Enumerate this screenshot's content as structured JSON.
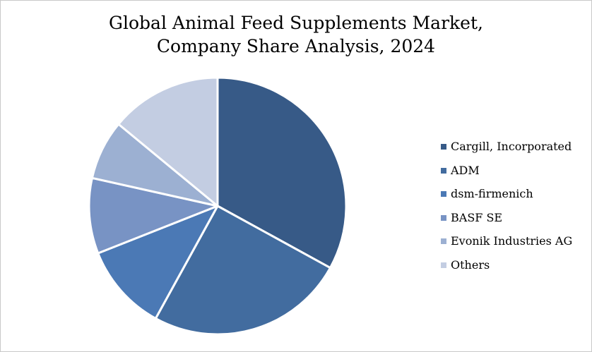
{
  "chart_data": {
    "type": "pie",
    "title": "Global Animal Feed Supplements Market, Company Share Analysis, 2024",
    "title_lines": [
      "Global Animal Feed Supplements Market,",
      "Company Share Analysis, 2024"
    ],
    "categories": [
      "Cargill, Incorporated",
      "ADM",
      "dsm-firmenich",
      "BASF SE",
      "Evonik Industries AG",
      "Others"
    ],
    "values": [
      33,
      25,
      11,
      9.5,
      7.5,
      14
    ],
    "unit": "%",
    "colors": [
      "#375a87",
      "#426c9f",
      "#4b79b5",
      "#7893c4",
      "#9cb0d2",
      "#c3cde2"
    ],
    "legend_position": "right",
    "start_angle_deg": 0,
    "direction": "clockwise"
  }
}
